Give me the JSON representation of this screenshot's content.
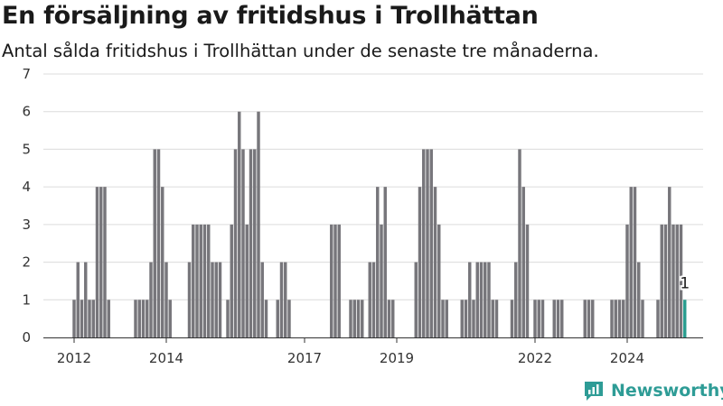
{
  "header": {
    "title": "En försäljning av fritidshus i Trollhättan",
    "subtitle": "Antal sålda fritidshus i Trollhättan under de senaste tre månaderna."
  },
  "brand": {
    "name": "Newsworthy",
    "color": "#2e9c96"
  },
  "colors": {
    "bar": "#77767b",
    "highlight": "#2a9d8f",
    "grid": "#dcdcdc"
  },
  "chart_data": {
    "type": "bar",
    "title": "En försäljning av fritidshus i Trollhättan",
    "subtitle": "Antal sålda fritidshus i Trollhättan under de senaste tre månaderna.",
    "xlabel": "",
    "ylabel": "",
    "ylim": [
      0,
      7
    ],
    "yticks": [
      0,
      1,
      2,
      3,
      4,
      5,
      6,
      7
    ],
    "grid": true,
    "x_start": "2012-01",
    "x_end": "2025-01",
    "xticks": [
      "2012",
      "2014",
      "2017",
      "2019",
      "2022",
      "2024"
    ],
    "xtick_positions": [
      "2012-01",
      "2014-01",
      "2017-01",
      "2019-01",
      "2022-01",
      "2024-01"
    ],
    "series": [
      {
        "points": [
          [
            "2012-01",
            1
          ],
          [
            "2012-02",
            2
          ],
          [
            "2012-03",
            1
          ],
          [
            "2012-04",
            2
          ],
          [
            "2012-05",
            1
          ],
          [
            "2012-06",
            1
          ],
          [
            "2012-07",
            4
          ],
          [
            "2012-08",
            4
          ],
          [
            "2012-09",
            4
          ],
          [
            "2012-10",
            1
          ],
          [
            "2013-05",
            1
          ],
          [
            "2013-06",
            1
          ],
          [
            "2013-07",
            1
          ],
          [
            "2013-08",
            1
          ],
          [
            "2013-09",
            2
          ],
          [
            "2013-10",
            5
          ],
          [
            "2013-11",
            5
          ],
          [
            "2013-12",
            4
          ],
          [
            "2014-01",
            2
          ],
          [
            "2014-02",
            1
          ],
          [
            "2014-07",
            2
          ],
          [
            "2014-08",
            3
          ],
          [
            "2014-09",
            3
          ],
          [
            "2014-10",
            3
          ],
          [
            "2014-11",
            3
          ],
          [
            "2014-12",
            3
          ],
          [
            "2015-01",
            2
          ],
          [
            "2015-02",
            2
          ],
          [
            "2015-03",
            2
          ],
          [
            "2015-05",
            1
          ],
          [
            "2015-06",
            3
          ],
          [
            "2015-07",
            5
          ],
          [
            "2015-08",
            6
          ],
          [
            "2015-09",
            5
          ],
          [
            "2015-10",
            3
          ],
          [
            "2015-11",
            5
          ],
          [
            "2015-12",
            5
          ],
          [
            "2016-01",
            6
          ],
          [
            "2016-02",
            2
          ],
          [
            "2016-03",
            1
          ],
          [
            "2016-06",
            1
          ],
          [
            "2016-07",
            2
          ],
          [
            "2016-08",
            2
          ],
          [
            "2016-09",
            1
          ],
          [
            "2017-08",
            3
          ],
          [
            "2017-09",
            3
          ],
          [
            "2017-10",
            3
          ],
          [
            "2018-01",
            1
          ],
          [
            "2018-02",
            1
          ],
          [
            "2018-03",
            1
          ],
          [
            "2018-04",
            1
          ],
          [
            "2018-06",
            2
          ],
          [
            "2018-07",
            2
          ],
          [
            "2018-08",
            4
          ],
          [
            "2018-09",
            3
          ],
          [
            "2018-10",
            4
          ],
          [
            "2018-11",
            1
          ],
          [
            "2018-12",
            1
          ],
          [
            "2019-06",
            2
          ],
          [
            "2019-07",
            4
          ],
          [
            "2019-08",
            5
          ],
          [
            "2019-09",
            5
          ],
          [
            "2019-10",
            5
          ],
          [
            "2019-11",
            4
          ],
          [
            "2019-12",
            3
          ],
          [
            "2020-01",
            1
          ],
          [
            "2020-02",
            1
          ],
          [
            "2020-06",
            1
          ],
          [
            "2020-07",
            1
          ],
          [
            "2020-08",
            2
          ],
          [
            "2020-09",
            1
          ],
          [
            "2020-10",
            2
          ],
          [
            "2020-11",
            2
          ],
          [
            "2020-12",
            2
          ],
          [
            "2021-01",
            2
          ],
          [
            "2021-02",
            1
          ],
          [
            "2021-03",
            1
          ],
          [
            "2021-07",
            1
          ],
          [
            "2021-08",
            2
          ],
          [
            "2021-09",
            5
          ],
          [
            "2021-10",
            4
          ],
          [
            "2021-11",
            3
          ],
          [
            "2022-01",
            1
          ],
          [
            "2022-02",
            1
          ],
          [
            "2022-03",
            1
          ],
          [
            "2022-06",
            1
          ],
          [
            "2022-07",
            1
          ],
          [
            "2022-08",
            1
          ],
          [
            "2023-02",
            1
          ],
          [
            "2023-03",
            1
          ],
          [
            "2023-04",
            1
          ],
          [
            "2023-09",
            1
          ],
          [
            "2023-10",
            1
          ],
          [
            "2023-11",
            1
          ],
          [
            "2023-12",
            1
          ],
          [
            "2024-01",
            3
          ],
          [
            "2024-02",
            4
          ],
          [
            "2024-03",
            4
          ],
          [
            "2024-04",
            2
          ],
          [
            "2024-05",
            1
          ],
          [
            "2024-09",
            1
          ],
          [
            "2024-10",
            3
          ],
          [
            "2024-11",
            3
          ],
          [
            "2024-12",
            4
          ],
          [
            "2025-01",
            3
          ],
          [
            "2025-02",
            3
          ],
          [
            "2025-03",
            3
          ]
        ]
      }
    ],
    "highlight": {
      "x": "2025-04",
      "value": 1,
      "label": "1"
    }
  }
}
